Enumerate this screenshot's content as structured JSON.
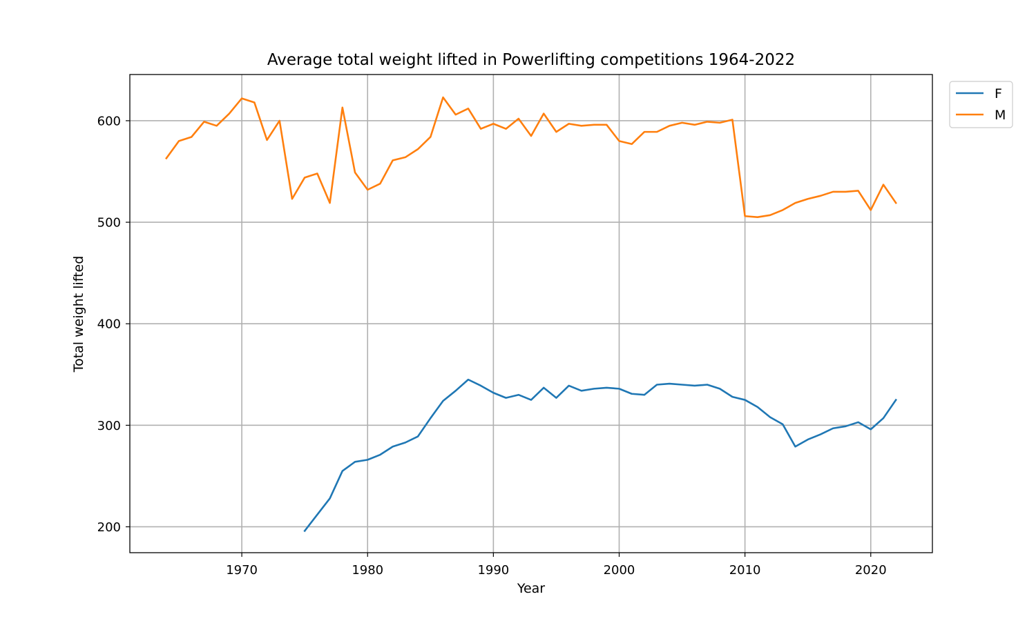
{
  "chart_data": {
    "type": "line",
    "title": "Average total weight lifted in Powerlifting competitions 1964-2022",
    "xlabel": "Year",
    "ylabel": "Total weight lifted",
    "xlim": [
      1961.1,
      2024.9
    ],
    "ylim": [
      174.5,
      645.5
    ],
    "x_ticks": [
      1970,
      1980,
      1990,
      2000,
      2010,
      2020
    ],
    "y_ticks": [
      200,
      300,
      400,
      500,
      600
    ],
    "grid": true,
    "legend": "outside-top-right",
    "series": [
      {
        "name": "F",
        "color": "#1f77b4",
        "x": [
          1975,
          1976,
          1977,
          1978,
          1979,
          1980,
          1981,
          1982,
          1983,
          1984,
          1985,
          1986,
          1987,
          1988,
          1989,
          1990,
          1991,
          1992,
          1993,
          1994,
          1995,
          1996,
          1997,
          1998,
          1999,
          2000,
          2001,
          2002,
          2003,
          2004,
          2005,
          2006,
          2007,
          2008,
          2009,
          2010,
          2011,
          2012,
          2013,
          2014,
          2015,
          2016,
          2017,
          2018,
          2019,
          2020,
          2021,
          2022
        ],
        "values": [
          196,
          212,
          228,
          255,
          264,
          266,
          271,
          279,
          283,
          289,
          307,
          324,
          334,
          345,
          339,
          332,
          327,
          330,
          325,
          337,
          327,
          339,
          334,
          336,
          337,
          336,
          331,
          330,
          340,
          341,
          340,
          339,
          340,
          336,
          328,
          325,
          318,
          308,
          301,
          279,
          286,
          291,
          297,
          299,
          303,
          296,
          307,
          325
        ]
      },
      {
        "name": "M",
        "color": "#ff7f0e",
        "x": [
          1964,
          1965,
          1966,
          1967,
          1968,
          1969,
          1970,
          1971,
          1972,
          1973,
          1974,
          1975,
          1976,
          1977,
          1978,
          1979,
          1980,
          1981,
          1982,
          1983,
          1984,
          1985,
          1986,
          1987,
          1988,
          1989,
          1990,
          1991,
          1992,
          1993,
          1994,
          1995,
          1996,
          1997,
          1998,
          1999,
          2000,
          2001,
          2002,
          2003,
          2004,
          2005,
          2006,
          2007,
          2008,
          2009,
          2010,
          2011,
          2012,
          2013,
          2014,
          2015,
          2016,
          2017,
          2018,
          2019,
          2020,
          2021,
          2022
        ],
        "values": [
          563,
          580,
          584,
          599,
          595,
          607,
          622,
          618,
          581,
          600,
          523,
          544,
          548,
          519,
          613,
          549,
          532,
          538,
          561,
          564,
          572,
          584,
          623,
          606,
          612,
          592,
          597,
          592,
          602,
          585,
          607,
          589,
          597,
          595,
          596,
          596,
          580,
          577,
          589,
          589,
          595,
          598,
          596,
          599,
          598,
          601,
          506,
          505,
          507,
          512,
          519,
          523,
          526,
          530,
          530,
          531,
          512,
          537,
          519
        ]
      }
    ]
  }
}
